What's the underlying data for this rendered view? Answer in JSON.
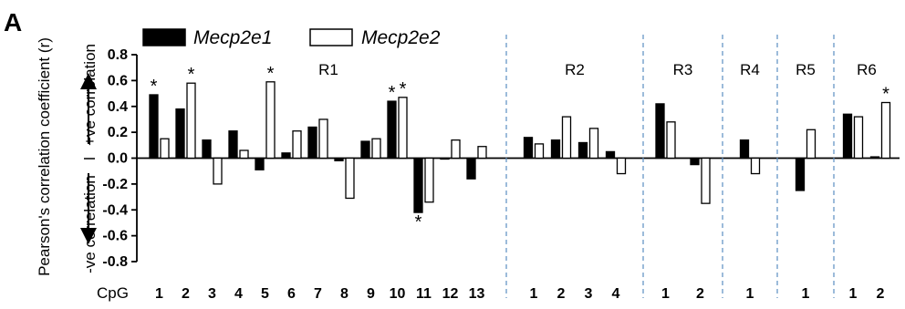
{
  "panel_label": "A",
  "chart_data": {
    "type": "bar",
    "title": "",
    "xlabel": "CpG",
    "ylabel": "Pearson's correlation coefficient (r)",
    "ylabel_positive": "+ve correlation",
    "ylabel_negative": "-ve correlation",
    "ylim": [
      -0.8,
      0.8
    ],
    "yticks": [
      "0.8",
      "0.6",
      "0.4",
      "0.2",
      "0.0",
      "-0.2",
      "-0.4",
      "-0.6",
      "-0.8"
    ],
    "grid": false,
    "legend_position": "top-left",
    "series": [
      {
        "name": "Mecp2e1",
        "color": "#000000"
      },
      {
        "name": "Mecp2e2",
        "color": "#ffffff"
      }
    ],
    "regions": [
      {
        "name": "R1",
        "cpgs": [
          "1",
          "2",
          "3",
          "4",
          "5",
          "6",
          "7",
          "8",
          "9",
          "10",
          "11",
          "12",
          "13"
        ],
        "mecp2e1": [
          0.49,
          0.38,
          0.14,
          0.21,
          -0.09,
          0.04,
          0.24,
          -0.02,
          0.13,
          0.44,
          -0.42,
          0.0,
          -0.16
        ],
        "mecp2e2": [
          0.15,
          0.58,
          -0.2,
          0.06,
          0.59,
          0.21,
          0.3,
          -0.31,
          0.15,
          0.47,
          -0.34,
          0.14,
          0.09
        ]
      },
      {
        "name": "R2",
        "cpgs": [
          "1",
          "2",
          "3",
          "4"
        ],
        "mecp2e1": [
          0.16,
          0.14,
          0.12,
          0.05
        ],
        "mecp2e2": [
          0.11,
          0.32,
          0.23,
          -0.12
        ]
      },
      {
        "name": "R3",
        "cpgs": [
          "1",
          "2"
        ],
        "mecp2e1": [
          0.42,
          -0.05
        ],
        "mecp2e2": [
          0.28,
          -0.35
        ]
      },
      {
        "name": "R4",
        "cpgs": [
          "1"
        ],
        "mecp2e1": [
          0.14
        ],
        "mecp2e2": [
          -0.12
        ]
      },
      {
        "name": "R5",
        "cpgs": [
          "1"
        ],
        "mecp2e1": [
          -0.25
        ],
        "mecp2e2": [
          0.22
        ]
      },
      {
        "name": "R6",
        "cpgs": [
          "1",
          "2"
        ],
        "mecp2e1": [
          0.34,
          0.01
        ],
        "mecp2e2": [
          0.32,
          0.43
        ]
      }
    ],
    "significant_marks": [
      {
        "region": "R1",
        "cpg": "1",
        "series": "Mecp2e1",
        "mark": "*"
      },
      {
        "region": "R1",
        "cpg": "2",
        "series": "Mecp2e2",
        "mark": "*"
      },
      {
        "region": "R1",
        "cpg": "5",
        "series": "Mecp2e2",
        "mark": "*"
      },
      {
        "region": "R1",
        "cpg": "10",
        "series": "Mecp2e1",
        "mark": "*"
      },
      {
        "region": "R1",
        "cpg": "10",
        "series": "Mecp2e2",
        "mark": "*"
      },
      {
        "region": "R1",
        "cpg": "11",
        "series": "Mecp2e1",
        "mark": "*"
      },
      {
        "region": "R6",
        "cpg": "2",
        "series": "Mecp2e2",
        "mark": "*"
      }
    ]
  }
}
